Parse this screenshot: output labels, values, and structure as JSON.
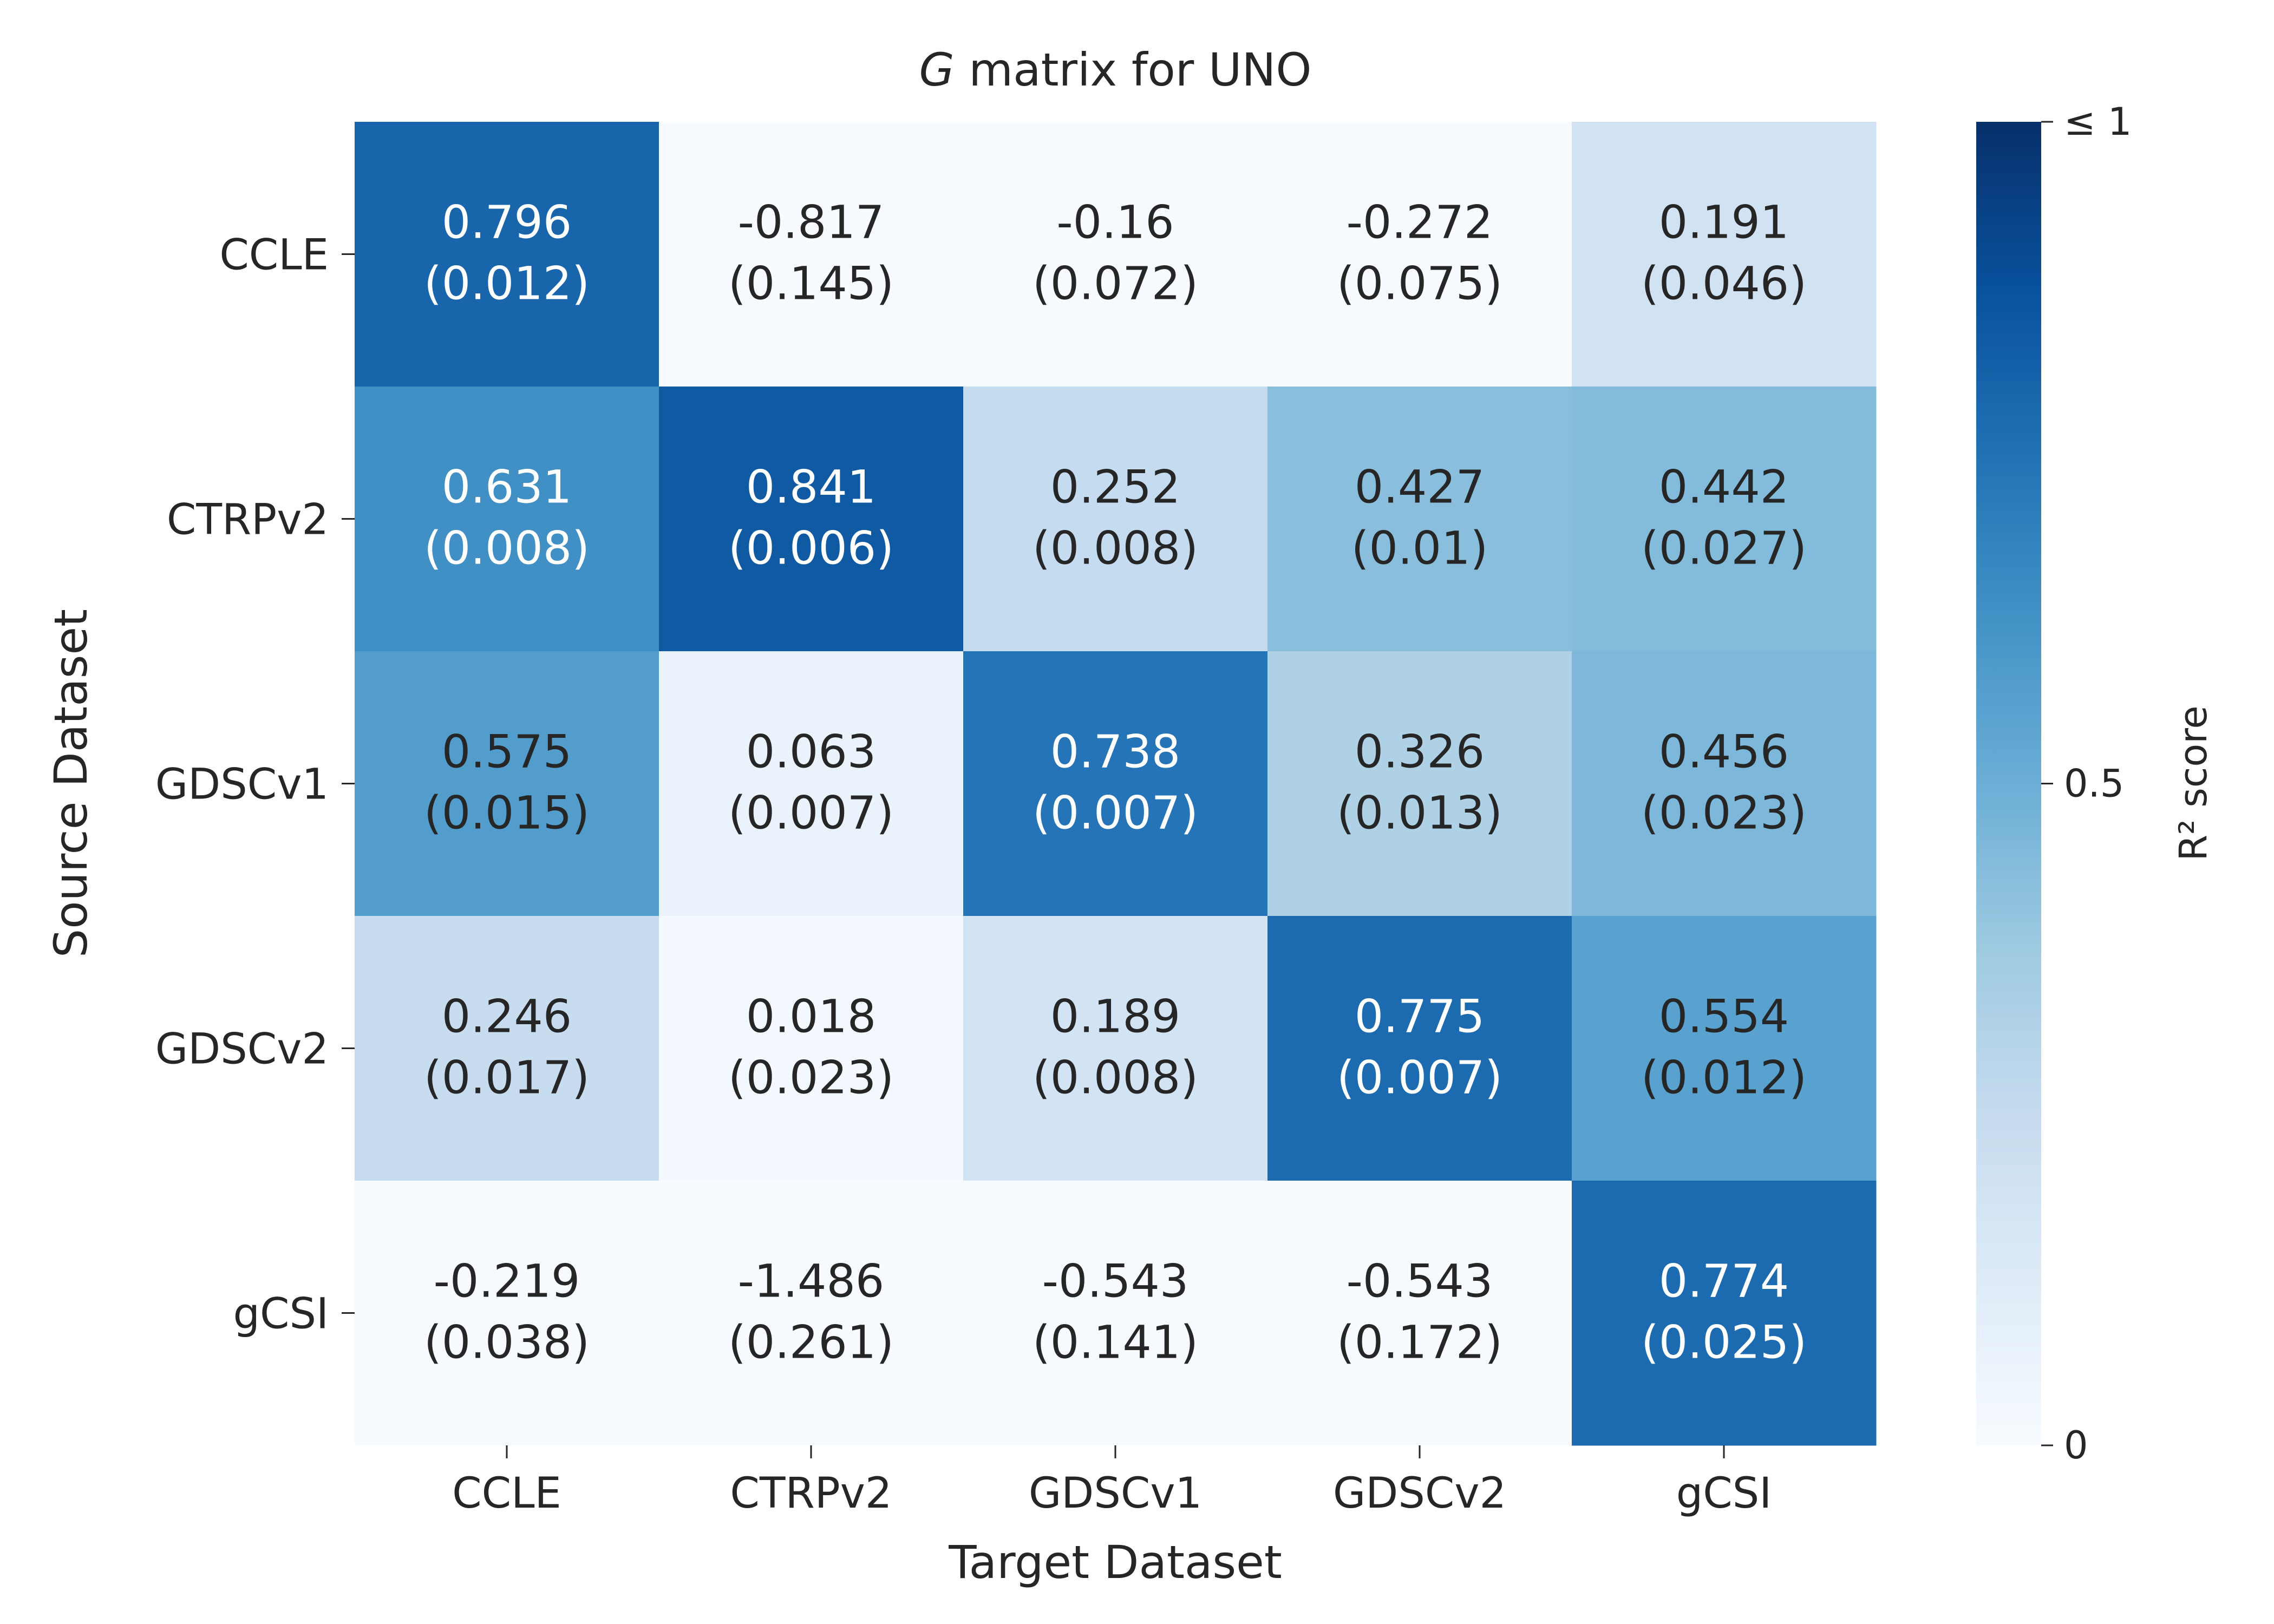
{
  "chart_data": {
    "type": "heatmap",
    "title_italic": "G",
    "title_rest": " matrix for UNO",
    "xlabel": "Target Dataset",
    "ylabel": "Source Dataset",
    "x_categories": [
      "CCLE",
      "CTRPv2",
      "GDSCv1",
      "GDSCv2",
      "gCSI"
    ],
    "y_categories": [
      "CCLE",
      "CTRPv2",
      "GDSCv1",
      "GDSCv2",
      "gCSI"
    ],
    "values": [
      [
        0.796,
        -0.817,
        -0.16,
        -0.272,
        0.191
      ],
      [
        0.631,
        0.841,
        0.252,
        0.427,
        0.442
      ],
      [
        0.575,
        0.063,
        0.738,
        0.326,
        0.456
      ],
      [
        0.246,
        0.018,
        0.189,
        0.775,
        0.554
      ],
      [
        -0.219,
        -1.486,
        -0.543,
        -0.543,
        0.774
      ]
    ],
    "value_labels": [
      [
        "0.796",
        "-0.817",
        "-0.16",
        "-0.272",
        "0.191"
      ],
      [
        "0.631",
        "0.841",
        "0.252",
        "0.427",
        "0.442"
      ],
      [
        "0.575",
        "0.063",
        "0.738",
        "0.326",
        "0.456"
      ],
      [
        "0.246",
        "0.018",
        "0.189",
        "0.775",
        "0.554"
      ],
      [
        "-0.219",
        "-1.486",
        "-0.543",
        "-0.543",
        "0.774"
      ]
    ],
    "std_labels": [
      [
        "(0.012)",
        "(0.145)",
        "(0.072)",
        "(0.075)",
        "(0.046)"
      ],
      [
        "(0.008)",
        "(0.006)",
        "(0.008)",
        "(0.01)",
        "(0.027)"
      ],
      [
        "(0.015)",
        "(0.007)",
        "(0.007)",
        "(0.013)",
        "(0.023)"
      ],
      [
        "(0.017)",
        "(0.023)",
        "(0.008)",
        "(0.007)",
        "(0.012)"
      ],
      [
        "(0.038)",
        "(0.261)",
        "(0.141)",
        "(0.172)",
        "(0.025)"
      ]
    ],
    "colorbar": {
      "label": "R² score",
      "range": [
        0,
        1
      ],
      "ticks": [
        {
          "value": 0,
          "label": "0"
        },
        {
          "value": 0.5,
          "label": "0.5"
        },
        {
          "value": 1,
          "label": "≤ 1"
        }
      ]
    },
    "colormap": "Blues",
    "text_colors": {
      "dark": "#262626",
      "light": "#ffffff"
    }
  }
}
